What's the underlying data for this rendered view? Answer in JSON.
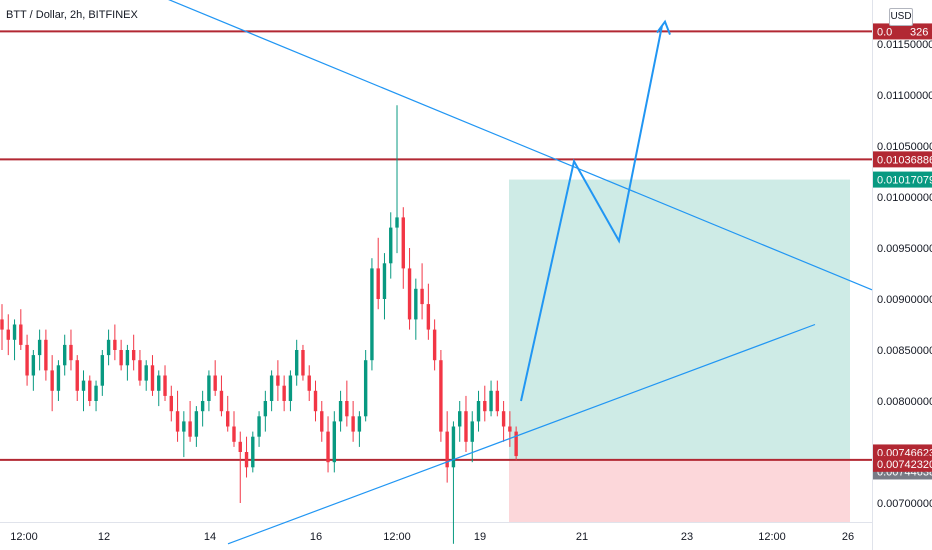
{
  "chart_data": {
    "type": "candlestick",
    "title": "BTT / Dollar, 2h, BITFINEX",
    "currency": "USD",
    "y_range": [
      0.0066,
      0.0119
    ],
    "y_ticks": [
      "0.01150000",
      "0.01100000",
      "0.01050000",
      "0.01000000",
      "0.00950000",
      "0.00900000",
      "0.00850000",
      "0.00800000",
      "0.00750000",
      "0.00700000"
    ],
    "x_ticks": [
      "12:00",
      "12",
      "14",
      "16",
      "12:00",
      "19",
      "21",
      "23",
      "12:00",
      "26"
    ],
    "price_badges": [
      {
        "label": "0.01162326",
        "display": "0.0",
        "suffix": "326",
        "value": 0.01162326,
        "color": "#b22833",
        "text_color": "#ffffff"
      },
      {
        "label": "0.01036886",
        "value": 0.01036886,
        "color": "#b22833",
        "text_color": "#ffffff"
      },
      {
        "label": "0.01017079",
        "value": 0.01017079,
        "color": "#089981",
        "text_color": "#ffffff"
      },
      {
        "label": "0.00746623",
        "value": 0.00746623,
        "color": "#b22833",
        "text_color": "#ffffff"
      },
      {
        "label": "0.00744638",
        "value": 0.00744638,
        "color": "#787b86",
        "text_color": "#ffffff"
      },
      {
        "label": "0.00742320",
        "value": 0.0074232,
        "color": "#b22833",
        "text_color": "#ffffff"
      }
    ],
    "horizontal_levels": [
      0.01162326,
      0.01036886,
      0.0074232
    ],
    "position": {
      "entry": 0.0074232,
      "target": 0.01017079,
      "stop": 0.0066
    },
    "trendlines": [
      {
        "name": "descending",
        "from_price": 0.0121,
        "to_price": 0.00909
      },
      {
        "name": "ascending",
        "from_price": 0.0066,
        "to_price": 0.00875
      }
    ],
    "projection_path": [
      0.008,
      0.01035,
      0.00957,
      0.01168
    ],
    "candles": [
      [
        0.0088,
        0.00895,
        0.0085,
        0.0087
      ],
      [
        0.0087,
        0.00885,
        0.00845,
        0.0086
      ],
      [
        0.0086,
        0.0088,
        0.0084,
        0.00875
      ],
      [
        0.00875,
        0.0089,
        0.0085,
        0.00855
      ],
      [
        0.00855,
        0.00865,
        0.00815,
        0.00825
      ],
      [
        0.00825,
        0.0085,
        0.0081,
        0.00845
      ],
      [
        0.00845,
        0.0087,
        0.0083,
        0.0086
      ],
      [
        0.0086,
        0.0087,
        0.0082,
        0.0083
      ],
      [
        0.0083,
        0.00845,
        0.0079,
        0.0081
      ],
      [
        0.0081,
        0.0084,
        0.008,
        0.00835
      ],
      [
        0.00835,
        0.00865,
        0.00825,
        0.00855
      ],
      [
        0.00855,
        0.0087,
        0.0083,
        0.0084
      ],
      [
        0.0084,
        0.00845,
        0.008,
        0.0081
      ],
      [
        0.0081,
        0.0083,
        0.0079,
        0.0082
      ],
      [
        0.0082,
        0.00825,
        0.00795,
        0.008
      ],
      [
        0.008,
        0.0082,
        0.0079,
        0.00815
      ],
      [
        0.00815,
        0.0085,
        0.00805,
        0.00845
      ],
      [
        0.00845,
        0.0087,
        0.00835,
        0.0086
      ],
      [
        0.0086,
        0.00875,
        0.0084,
        0.0085
      ],
      [
        0.0085,
        0.0086,
        0.0083,
        0.00835
      ],
      [
        0.00835,
        0.00855,
        0.0082,
        0.0085
      ],
      [
        0.0085,
        0.00865,
        0.0083,
        0.0084
      ],
      [
        0.0084,
        0.0085,
        0.00815,
        0.0082
      ],
      [
        0.0082,
        0.0084,
        0.0081,
        0.00835
      ],
      [
        0.00835,
        0.00845,
        0.00805,
        0.0081
      ],
      [
        0.0081,
        0.0083,
        0.00795,
        0.00825
      ],
      [
        0.00825,
        0.00835,
        0.008,
        0.00805
      ],
      [
        0.00805,
        0.00815,
        0.0078,
        0.0079
      ],
      [
        0.0079,
        0.0081,
        0.0076,
        0.0077
      ],
      [
        0.0077,
        0.0079,
        0.00745,
        0.0078
      ],
      [
        0.0078,
        0.008,
        0.0076,
        0.00765
      ],
      [
        0.00765,
        0.00795,
        0.00755,
        0.0079
      ],
      [
        0.0079,
        0.0081,
        0.00775,
        0.008
      ],
      [
        0.008,
        0.0083,
        0.0079,
        0.00825
      ],
      [
        0.00825,
        0.0084,
        0.00805,
        0.0081
      ],
      [
        0.0081,
        0.00825,
        0.00785,
        0.0079
      ],
      [
        0.0079,
        0.00805,
        0.0077,
        0.00775
      ],
      [
        0.00775,
        0.0079,
        0.00755,
        0.0076
      ],
      [
        0.0076,
        0.0077,
        0.007,
        0.0075
      ],
      [
        0.0075,
        0.00765,
        0.00725,
        0.00735
      ],
      [
        0.00735,
        0.0077,
        0.0073,
        0.00765
      ],
      [
        0.00765,
        0.0079,
        0.00755,
        0.00785
      ],
      [
        0.00785,
        0.0081,
        0.0077,
        0.008
      ],
      [
        0.008,
        0.0083,
        0.0079,
        0.00825
      ],
      [
        0.00825,
        0.0084,
        0.008,
        0.00815
      ],
      [
        0.00815,
        0.00825,
        0.0079,
        0.008
      ],
      [
        0.008,
        0.0083,
        0.0079,
        0.00825
      ],
      [
        0.00825,
        0.0086,
        0.00815,
        0.0085
      ],
      [
        0.0085,
        0.00855,
        0.0082,
        0.00825
      ],
      [
        0.00825,
        0.00835,
        0.008,
        0.0081
      ],
      [
        0.0081,
        0.0082,
        0.0078,
        0.0079
      ],
      [
        0.0079,
        0.008,
        0.0076,
        0.0077
      ],
      [
        0.0077,
        0.00785,
        0.0073,
        0.0074
      ],
      [
        0.0074,
        0.0079,
        0.0073,
        0.0078
      ],
      [
        0.0078,
        0.0081,
        0.0077,
        0.008
      ],
      [
        0.008,
        0.0082,
        0.00775,
        0.00785
      ],
      [
        0.00785,
        0.008,
        0.0076,
        0.0077
      ],
      [
        0.0077,
        0.0079,
        0.00755,
        0.00785
      ],
      [
        0.00785,
        0.0085,
        0.0078,
        0.0084
      ],
      [
        0.0084,
        0.0094,
        0.0083,
        0.0093
      ],
      [
        0.0093,
        0.0096,
        0.0089,
        0.009
      ],
      [
        0.009,
        0.00945,
        0.0088,
        0.00935
      ],
      [
        0.00935,
        0.00985,
        0.0092,
        0.0097
      ],
      [
        0.0097,
        0.0109,
        0.00945,
        0.0098
      ],
      [
        0.0098,
        0.0099,
        0.0091,
        0.0093
      ],
      [
        0.0093,
        0.0095,
        0.0087,
        0.0088
      ],
      [
        0.0088,
        0.0092,
        0.0086,
        0.0091
      ],
      [
        0.0091,
        0.00935,
        0.0088,
        0.00895
      ],
      [
        0.00895,
        0.00915,
        0.0086,
        0.0087
      ],
      [
        0.0087,
        0.0088,
        0.0083,
        0.0084
      ],
      [
        0.0084,
        0.0085,
        0.0076,
        0.0077
      ],
      [
        0.0077,
        0.0079,
        0.0072,
        0.00735
      ],
      [
        0.00735,
        0.0078,
        0.0066,
        0.00775
      ],
      [
        0.00775,
        0.008,
        0.0076,
        0.0079
      ],
      [
        0.0079,
        0.00805,
        0.0075,
        0.0076
      ],
      [
        0.0076,
        0.0079,
        0.0074,
        0.0078
      ],
      [
        0.0078,
        0.0081,
        0.0077,
        0.008
      ],
      [
        0.008,
        0.00815,
        0.0078,
        0.0079
      ],
      [
        0.0079,
        0.0082,
        0.00785,
        0.0081
      ],
      [
        0.0081,
        0.0082,
        0.00785,
        0.0079
      ],
      [
        0.0079,
        0.008,
        0.0076,
        0.00775
      ],
      [
        0.00775,
        0.0079,
        0.00755,
        0.0077
      ],
      [
        0.0077,
        0.00775,
        0.00742,
        0.00746
      ]
    ]
  }
}
